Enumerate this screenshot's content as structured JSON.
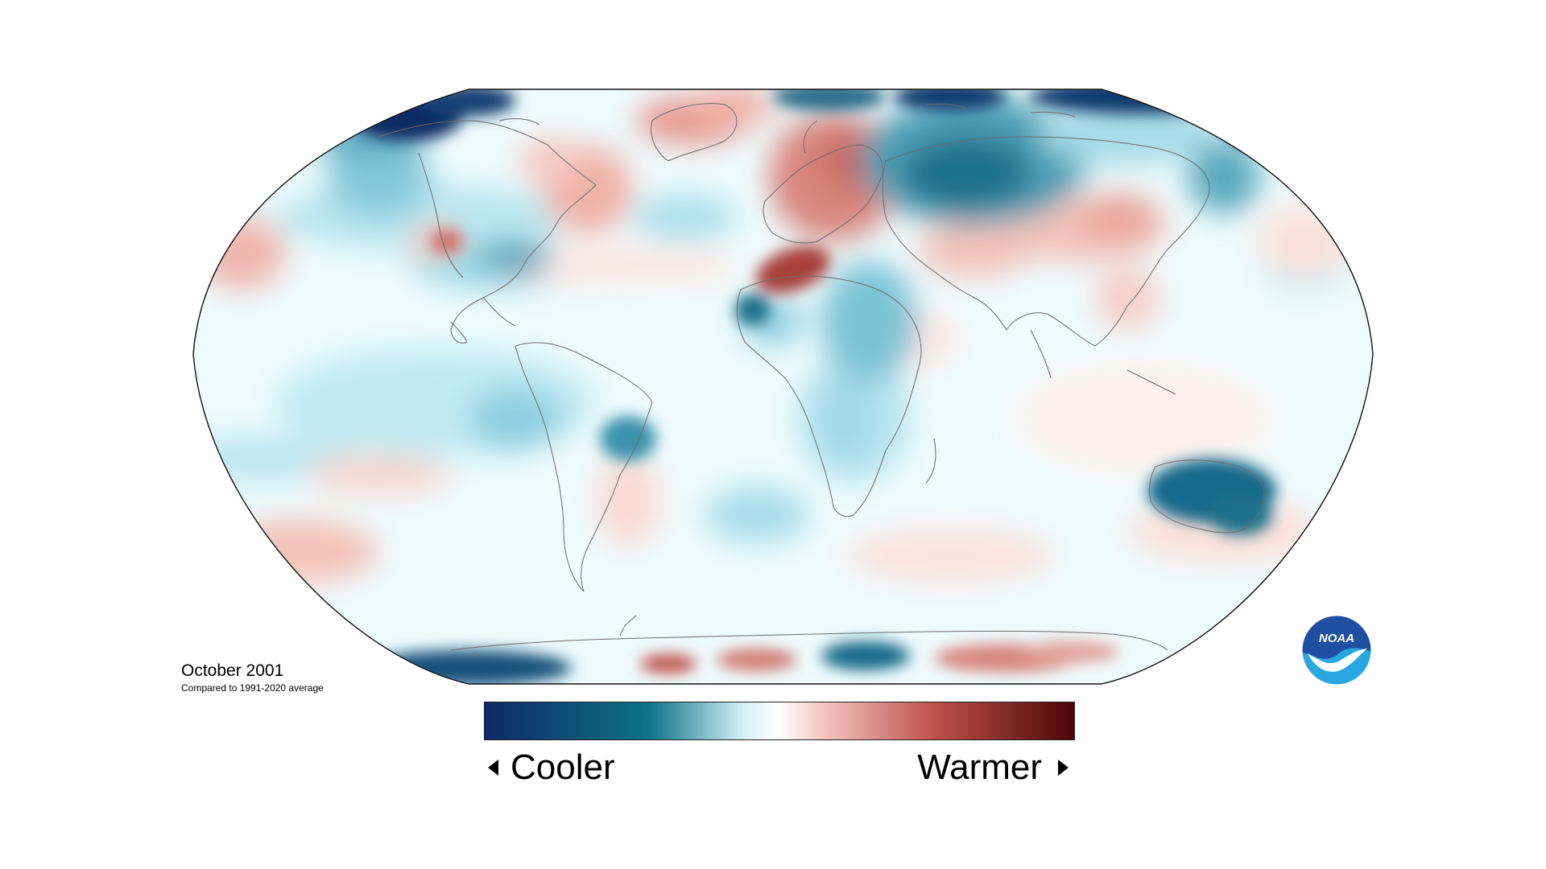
{
  "map": {
    "projection": "Robinson",
    "period": "October 2001",
    "comparison": "Compared to 1991-2020 average",
    "variable": "temperature anomaly"
  },
  "legend": {
    "low_label": "Cooler",
    "high_label": "Warmer",
    "colors": [
      "#0d2a63",
      "#0f7289",
      "#d4f1f6",
      "#ffffff",
      "#f7cfc9",
      "#c0524c",
      "#4b0606"
    ]
  },
  "logo": {
    "text": "NOAA",
    "icon": "noaa-logo-icon",
    "colors": {
      "dark": "#1e4fa1",
      "light": "#2aa7e0"
    }
  },
  "colors": {
    "cool_dark": "#0d2a63",
    "cool_mid": "#0f7289",
    "cool_light": "#cfeff5",
    "warm_light": "#f6d0c9",
    "warm_mid": "#c4605a",
    "warm_dark": "#7e1a1a"
  }
}
